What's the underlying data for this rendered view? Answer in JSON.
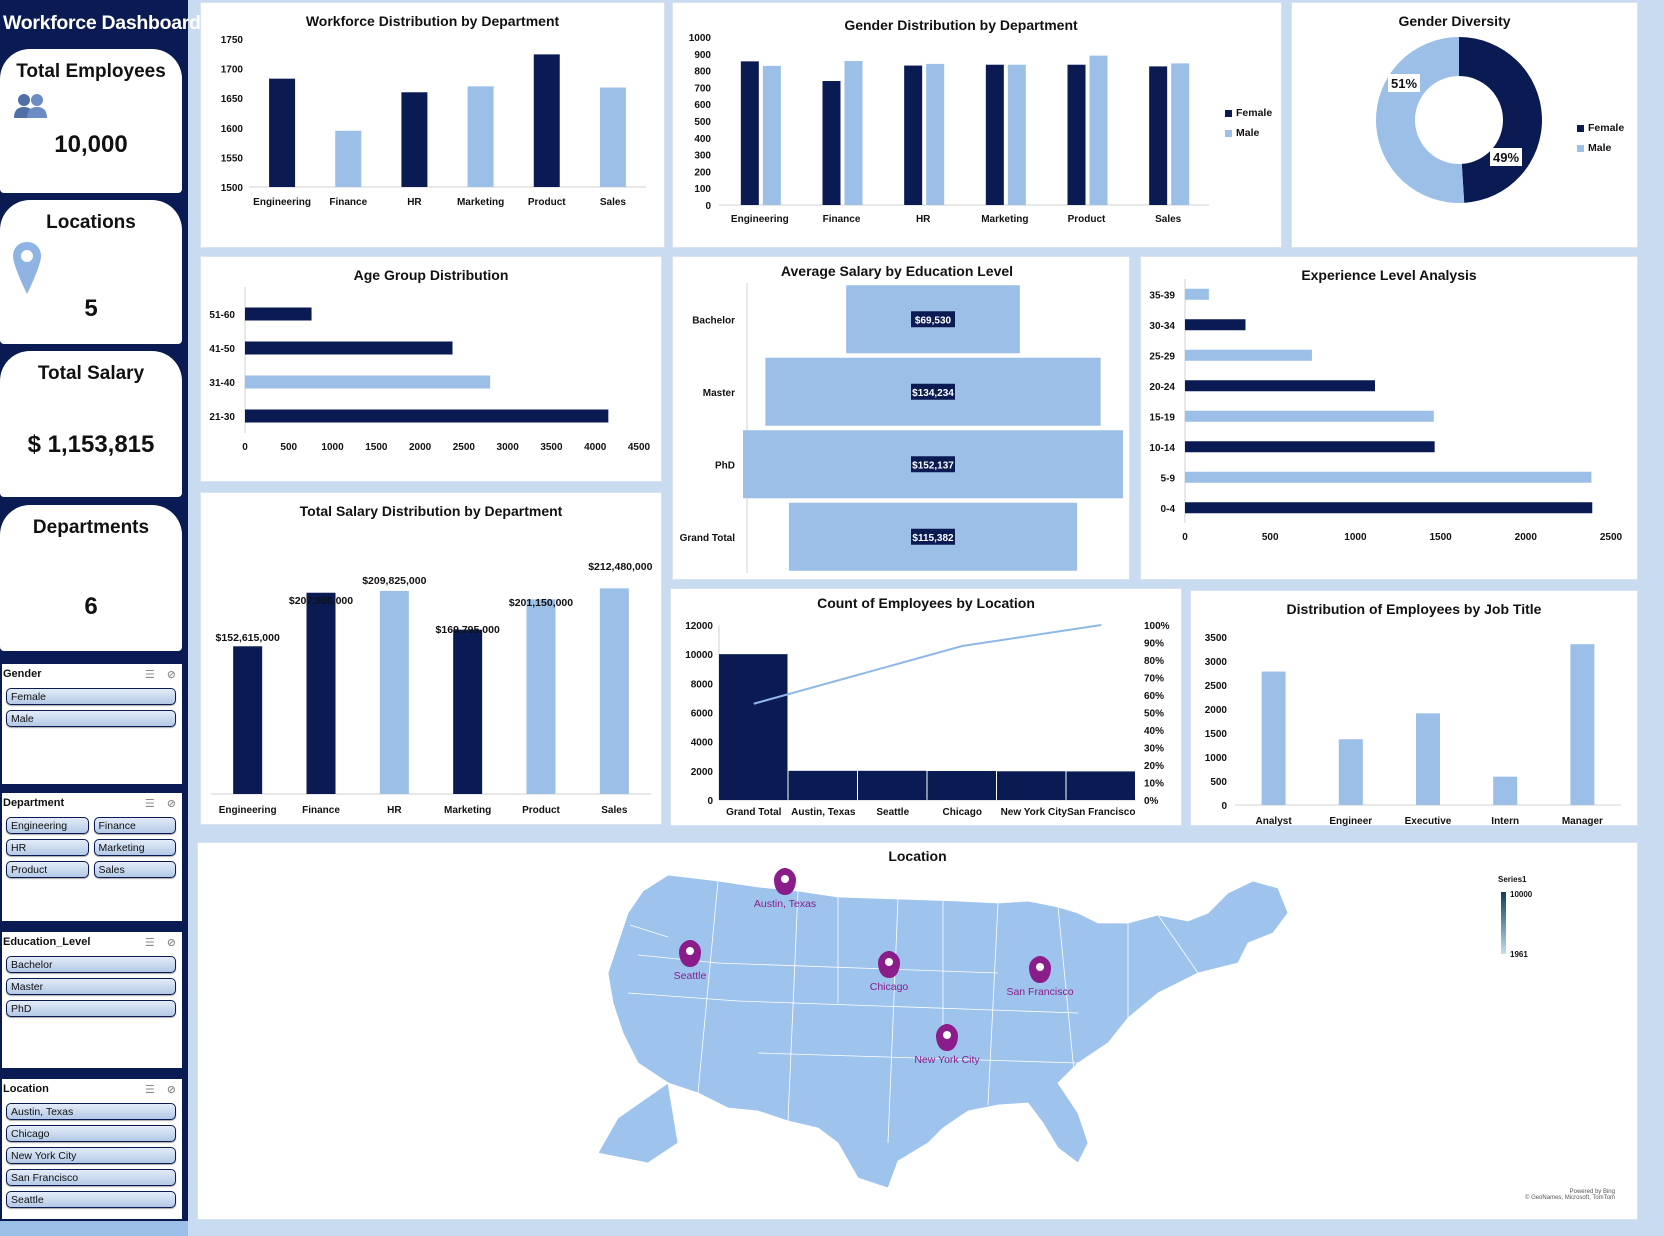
{
  "colors": {
    "navy": "#0a1a52",
    "light_blue": "#9cbfe8",
    "map_fill": "#9ec3ec",
    "pin": "#8a1d8a"
  },
  "sidebar": {
    "title": "Workforce Dashboard",
    "kpis": [
      {
        "label": "Total Employees",
        "value": "10,000",
        "icon": "people-icon"
      },
      {
        "label": "Locations",
        "value": "5",
        "icon": "location-pin-icon"
      },
      {
        "label": "Total Salary",
        "value": "$ 1,153,815"
      },
      {
        "label": "Departments",
        "value": "6"
      }
    ],
    "slicers": [
      {
        "title": "Gender",
        "items": [
          "Female",
          "Male"
        ]
      },
      {
        "title": "Department",
        "items": [
          "Engineering",
          "Finance",
          "HR",
          "Marketing",
          "Product",
          "Sales"
        ]
      },
      {
        "title": "Education_Level",
        "items": [
          "Bachelor",
          "Master",
          "PhD"
        ]
      },
      {
        "title": "Location",
        "items": [
          "Austin, Texas",
          "Chicago",
          "New York City",
          "San Francisco",
          "Seattle"
        ]
      }
    ]
  },
  "charts": {
    "workforce_dept": {
      "title": "Workforce Distribution by Department"
    },
    "gender_dept": {
      "title": "Gender Distribution by Department",
      "legend": [
        "Female",
        "Male"
      ]
    },
    "gender_div": {
      "title": "Gender Diversity",
      "legend": [
        "Female",
        "Male"
      ],
      "labels": [
        "51%",
        "49%"
      ]
    },
    "age_group": {
      "title": "Age Group Distribution"
    },
    "avg_salary_edu": {
      "title": "Average Salary by Education Level"
    },
    "experience": {
      "title": "Experience Level Analysis"
    },
    "salary_dept": {
      "title": "Total Salary Distribution by Department"
    },
    "emp_location": {
      "title": "Count of Employees by Location"
    },
    "job_title": {
      "title": "Distribution of Employees by Job Title"
    },
    "location_map": {
      "title": "Location",
      "legend_title": "Series1",
      "legend_max": "10000",
      "legend_min": "1961",
      "credits_1": "Powered by Bing",
      "credits_2": "© GeoNames, Microsoft, TomTom"
    }
  },
  "chart_data": [
    {
      "id": "workforce_dept",
      "type": "bar",
      "title": "Workforce Distribution by Department",
      "categories": [
        "Engineering",
        "Finance",
        "HR",
        "Marketing",
        "Product",
        "Sales"
      ],
      "values": [
        1683,
        1595,
        1660,
        1670,
        1724,
        1668
      ],
      "ylim": [
        1500,
        1750
      ],
      "yticks": [
        1500,
        1550,
        1600,
        1650,
        1700,
        1750
      ],
      "grid": false,
      "colors": [
        "#0a1a52",
        "#9cbfe8",
        "#0a1a52",
        "#9cbfe8",
        "#0a1a52",
        "#9cbfe8"
      ]
    },
    {
      "id": "gender_dept",
      "type": "bar",
      "title": "Gender Distribution by Department",
      "categories": [
        "Engineering",
        "Finance",
        "HR",
        "Marketing",
        "Product",
        "Sales"
      ],
      "series": [
        {
          "name": "Female",
          "values": [
            855,
            738,
            830,
            835,
            835,
            825
          ]
        },
        {
          "name": "Male",
          "values": [
            828,
            857,
            840,
            835,
            889,
            843
          ]
        }
      ],
      "ylim": [
        0,
        1000
      ],
      "yticks": [
        0,
        100,
        200,
        300,
        400,
        500,
        600,
        700,
        800,
        900,
        1000
      ],
      "legend": "right"
    },
    {
      "id": "gender_div",
      "type": "pie",
      "title": "Gender Diversity",
      "categories": [
        "Female",
        "Male"
      ],
      "values": [
        49,
        51
      ],
      "legend": "right"
    },
    {
      "id": "age_group",
      "type": "bar",
      "title": "Age Group Distribution",
      "orientation": "horizontal",
      "categories": [
        "21-30",
        "31-40",
        "41-50",
        "51-60"
      ],
      "values": [
        4150,
        2800,
        2370,
        760
      ],
      "xlim": [
        0,
        4500
      ],
      "xticks": [
        0,
        500,
        1000,
        1500,
        2000,
        2500,
        3000,
        3500,
        4000,
        4500
      ],
      "colors": [
        "#0a1a52",
        "#9cbfe8",
        "#0a1a52",
        "#0a1a52"
      ]
    },
    {
      "id": "avg_salary_edu",
      "type": "bar",
      "title": "Average Salary by Education Level",
      "orientation": "horizontal-centered",
      "categories": [
        "Bachelor",
        "Master",
        "PhD",
        "Grand Total"
      ],
      "values": [
        69530,
        134234,
        152137,
        115382
      ],
      "labels": [
        "$69,530",
        "$134,234",
        "$152,137",
        "$115,382"
      ]
    },
    {
      "id": "experience",
      "type": "bar",
      "title": "Experience Level Analysis",
      "orientation": "horizontal",
      "categories": [
        "0-4",
        "5-9",
        "10-14",
        "15-19",
        "20-24",
        "25-29",
        "30-34",
        "35-39"
      ],
      "values": [
        2390,
        2385,
        1465,
        1460,
        1115,
        745,
        355,
        140
      ],
      "xlim": [
        0,
        2500
      ],
      "xticks": [
        0,
        500,
        1000,
        1500,
        2000,
        2500
      ],
      "colors": [
        "#0a1a52",
        "#9cbfe8",
        "#0a1a52",
        "#9cbfe8",
        "#0a1a52",
        "#9cbfe8",
        "#0a1a52",
        "#9cbfe8"
      ]
    },
    {
      "id": "salary_dept",
      "type": "bar",
      "title": "Total Salary Distribution by Department",
      "categories": [
        "Engineering",
        "Finance",
        "HR",
        "Marketing",
        "Product",
        "Sales"
      ],
      "values": [
        152615000,
        207950000,
        209825000,
        169795000,
        201150000,
        212480000
      ],
      "labels": [
        "$152,615,000",
        "$207,950,000",
        "$209,825,000",
        "$169,795,000",
        "$201,150,000",
        "$212,480,000"
      ],
      "ylim": [
        0,
        280000000
      ],
      "colors": [
        "#0a1a52",
        "#0a1a52",
        "#9cbfe8",
        "#0a1a52",
        "#9cbfe8",
        "#9cbfe8"
      ]
    },
    {
      "id": "emp_location",
      "type": "bar",
      "title": "Count of Employees by Location",
      "subtype": "pareto",
      "categories": [
        "Grand Total",
        "Austin, Texas",
        "Seattle",
        "Chicago",
        "New York City",
        "San Francisco"
      ],
      "values": [
        10000,
        2000,
        2000,
        1990,
        1970,
        1961
      ],
      "ylim": [
        0,
        12000
      ],
      "yticks": [
        0,
        2000,
        4000,
        6000,
        8000,
        10000,
        12000
      ],
      "y2ticks": [
        "0%",
        "10%",
        "20%",
        "30%",
        "40%",
        "50%",
        "60%",
        "70%",
        "80%",
        "90%",
        "100%"
      ],
      "cumulative_pct": [
        55,
        66,
        77,
        88,
        94,
        100
      ]
    },
    {
      "id": "job_title",
      "type": "bar",
      "title": "Distribution of Employees by Job Title",
      "categories": [
        "Analyst",
        "Engineer",
        "Executive",
        "Intern",
        "Manager"
      ],
      "values": [
        2780,
        1370,
        1910,
        590,
        3350
      ],
      "ylim": [
        0,
        3500
      ],
      "yticks": [
        0,
        500,
        1000,
        1500,
        2000,
        2500,
        3000,
        3500
      ]
    },
    {
      "id": "location_map",
      "type": "map",
      "title": "Location",
      "categories": [
        "Austin, Texas",
        "Seattle",
        "Chicago",
        "San Francisco",
        "New York City"
      ],
      "values": [
        2000,
        2000,
        1990,
        1961,
        1970
      ]
    }
  ]
}
